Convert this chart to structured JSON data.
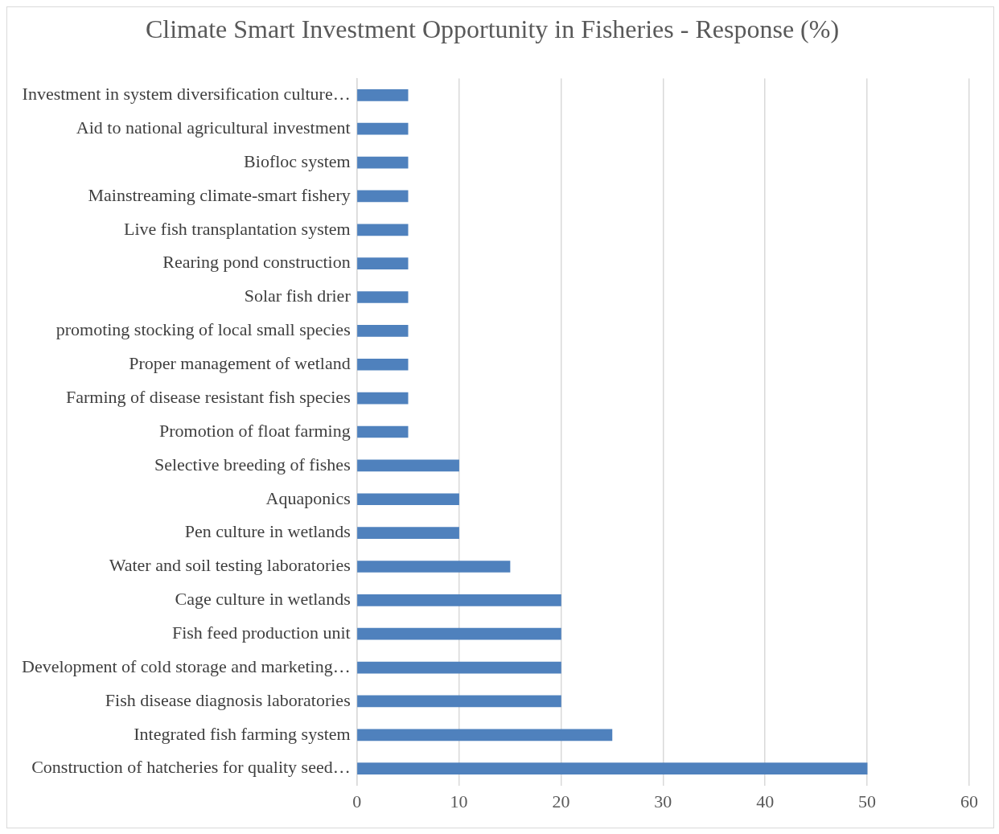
{
  "chart_data": {
    "type": "bar",
    "orientation": "horizontal",
    "title": "Climate Smart Investment Opportunity in Fisheries - Response (%)",
    "categories": [
      "Investment in system diversification culture…",
      "Aid to national agricultural investment",
      "Biofloc system",
      "Mainstreaming climate-smart fishery",
      "Live fish transplantation system",
      "Rearing pond construction",
      "Solar fish drier",
      "promoting stocking of local small species",
      "Proper management of wetland",
      "Farming of disease resistant fish species",
      "Promotion of float farming",
      "Selective breeding of fishes",
      "Aquaponics",
      "Pen culture in wetlands",
      "Water and soil testing laboratories",
      "Cage culture in wetlands",
      "Fish feed production unit",
      "Development of cold storage and marketing…",
      "Fish disease diagnosis laboratories",
      "Integrated fish farming system",
      "Construction of hatcheries for quality seed…"
    ],
    "values": [
      5,
      5,
      5,
      5,
      5,
      5,
      5,
      5,
      5,
      5,
      5,
      10,
      10,
      10,
      15,
      20,
      20,
      20,
      20,
      25,
      50
    ],
    "color": "#4f81bd",
    "xlim": [
      0,
      60
    ],
    "xticks": [
      0,
      10,
      20,
      30,
      40,
      50,
      60
    ],
    "grid": "x",
    "legend": false
  }
}
